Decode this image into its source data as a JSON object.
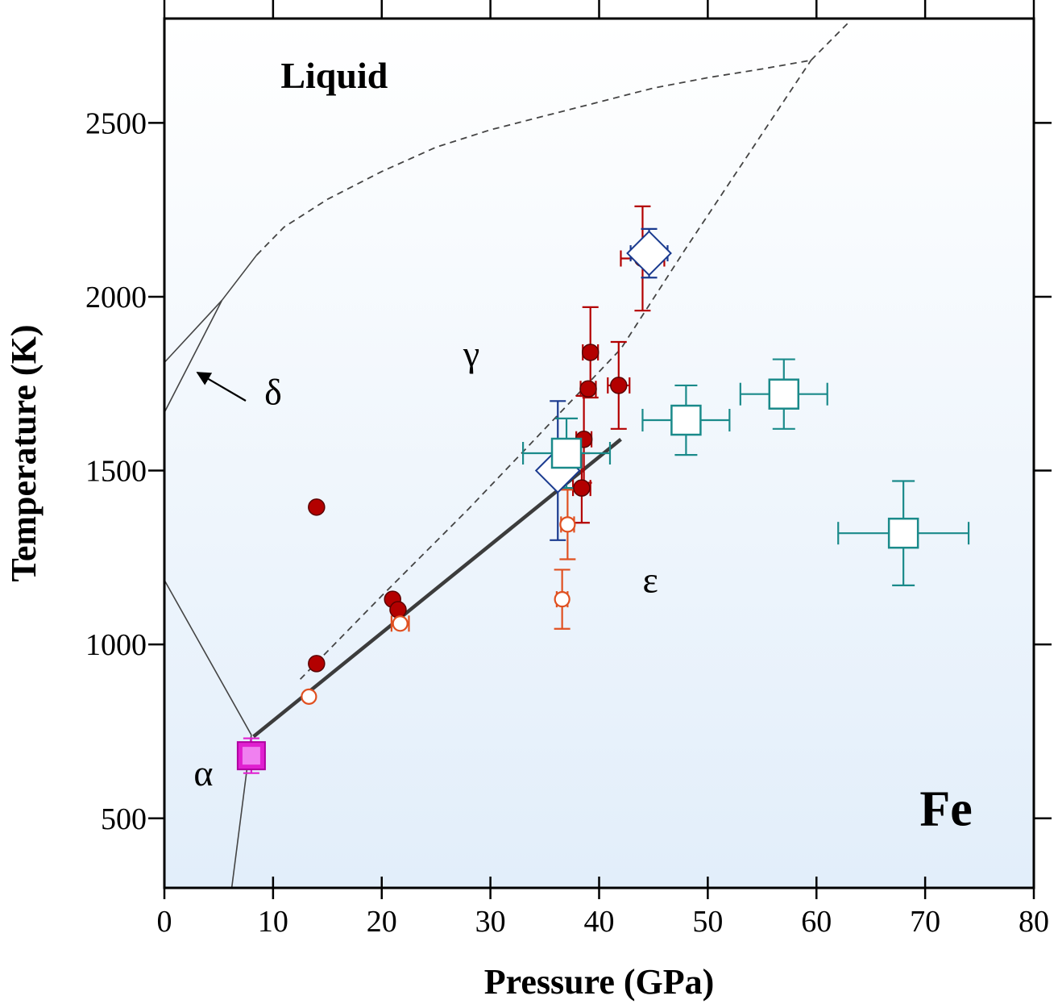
{
  "chart_data": {
    "type": "scatter",
    "title": "",
    "xlabel": "Pressure (GPa)",
    "ylabel": "Temperature (K)",
    "xlim": [
      0,
      80
    ],
    "ylim": [
      300,
      2800
    ],
    "x_ticks": [
      0,
      10,
      20,
      30,
      40,
      50,
      60,
      70,
      80
    ],
    "y_ticks": [
      500,
      1000,
      1500,
      2000,
      2500
    ],
    "grid": false,
    "legend": "none",
    "region_labels": [
      {
        "text": "Liquid",
        "x": 10.7,
        "y": 2600,
        "size": "large",
        "bold": true
      },
      {
        "text": "γ",
        "x": 27.5,
        "y": 1800,
        "size": "medium",
        "bold": false
      },
      {
        "text": "δ",
        "x": 9.2,
        "y": 1690,
        "size": "medium",
        "bold": false
      },
      {
        "text": "ε",
        "x": 44.0,
        "y": 1150,
        "size": "medium",
        "bold": false
      },
      {
        "text": "α",
        "x": 2.7,
        "y": 595,
        "size": "medium",
        "bold": false
      },
      {
        "text": "Fe",
        "x": 69.5,
        "y": 480,
        "size": "xlarge",
        "bold": true
      }
    ],
    "phase_boundaries": [
      {
        "name": "alpha-gamma",
        "style": "solid",
        "points": [
          [
            0,
            1185
          ],
          [
            8,
            740
          ]
        ]
      },
      {
        "name": "alpha-epsilon",
        "style": "solid",
        "points": [
          [
            8,
            740
          ],
          [
            6.2,
            300
          ]
        ]
      },
      {
        "name": "gamma-delta-low",
        "style": "solid",
        "points": [
          [
            0,
            1667
          ],
          [
            5.3,
            1990
          ]
        ]
      },
      {
        "name": "delta-liquid",
        "style": "solid",
        "points": [
          [
            0,
            1811
          ],
          [
            5.3,
            1990
          ]
        ]
      },
      {
        "name": "gamma-liquid-solid",
        "style": "solid",
        "points": [
          [
            5.3,
            1990
          ],
          [
            8.5,
            2120
          ]
        ]
      },
      {
        "name": "gamma-liquid",
        "style": "dashed",
        "points": [
          [
            8.5,
            2120
          ],
          [
            11,
            2200
          ],
          [
            15,
            2280
          ],
          [
            20,
            2360
          ],
          [
            25,
            2430
          ],
          [
            30,
            2480
          ],
          [
            35,
            2520
          ],
          [
            40,
            2560
          ],
          [
            45,
            2600
          ],
          [
            50,
            2630
          ],
          [
            55,
            2655
          ],
          [
            59.5,
            2680
          ]
        ]
      },
      {
        "name": "epsilon-liquid",
        "style": "dashed",
        "points": [
          [
            59.5,
            2680
          ],
          [
            63,
            2790
          ]
        ]
      },
      {
        "name": "gamma-epsilon-dashed",
        "style": "dashed",
        "points": [
          [
            12.5,
            900
          ],
          [
            20,
            1140
          ],
          [
            28,
            1390
          ],
          [
            35,
            1620
          ],
          [
            42,
            1850
          ],
          [
            48,
            2140
          ],
          [
            59.5,
            2680
          ]
        ]
      },
      {
        "name": "gamma-epsilon-fit",
        "style": "thick",
        "points": [
          [
            8.2,
            735
          ],
          [
            42,
            1590
          ]
        ]
      }
    ],
    "series": [
      {
        "marker": "filled-circle",
        "color": "#b30000",
        "points": [
          {
            "x": 14,
            "y": 1395
          },
          {
            "x": 14,
            "y": 945
          },
          {
            "x": 21,
            "y": 1130
          },
          {
            "x": 21.5,
            "y": 1100
          },
          {
            "x": 44,
            "y": 2110,
            "xerr": 2,
            "yerr": 150
          },
          {
            "x": 39.2,
            "y": 1840,
            "xerr": 0.7,
            "yerr": 130
          },
          {
            "x": 39,
            "y": 1735,
            "xerr": 0.7
          },
          {
            "x": 41.8,
            "y": 1745,
            "xerr": 1,
            "yerr": 125
          },
          {
            "x": 38.6,
            "y": 1590,
            "xerr": 0.7,
            "yerr": 125
          },
          {
            "x": 38.4,
            "y": 1450,
            "xerr": 0.8,
            "yerr": 100
          }
        ]
      },
      {
        "marker": "open-circle",
        "color": "#e05020",
        "points": [
          {
            "x": 13.3,
            "y": 850
          },
          {
            "x": 21.7,
            "y": 1060,
            "xerr": 0.8
          },
          {
            "x": 37.1,
            "y": 1345,
            "xerr": 0.6,
            "yerr": 100
          },
          {
            "x": 36.6,
            "y": 1130,
            "xerr": 0.5,
            "yerr": 85
          }
        ]
      },
      {
        "marker": "open-diamond",
        "color": "#1a3a8f",
        "points": [
          {
            "x": 36.2,
            "y": 1500,
            "yerr": 200
          },
          {
            "x": 44.6,
            "y": 2125,
            "xerr": 1.7,
            "yerr": 70
          }
        ]
      },
      {
        "marker": "open-square",
        "color": "#1a8a8a",
        "points": [
          {
            "x": 37,
            "y": 1550,
            "xerr": 4,
            "yerr": 100
          },
          {
            "x": 48,
            "y": 1645,
            "xerr": 4,
            "yerr": 100
          },
          {
            "x": 57,
            "y": 1720,
            "xerr": 4,
            "yerr": 100
          },
          {
            "x": 68,
            "y": 1320,
            "xerr": 6,
            "yerr": 150
          }
        ]
      },
      {
        "marker": "filled-square",
        "color": "#e020d0",
        "points": [
          {
            "x": 8,
            "y": 680,
            "yerr": 50
          }
        ]
      }
    ]
  }
}
